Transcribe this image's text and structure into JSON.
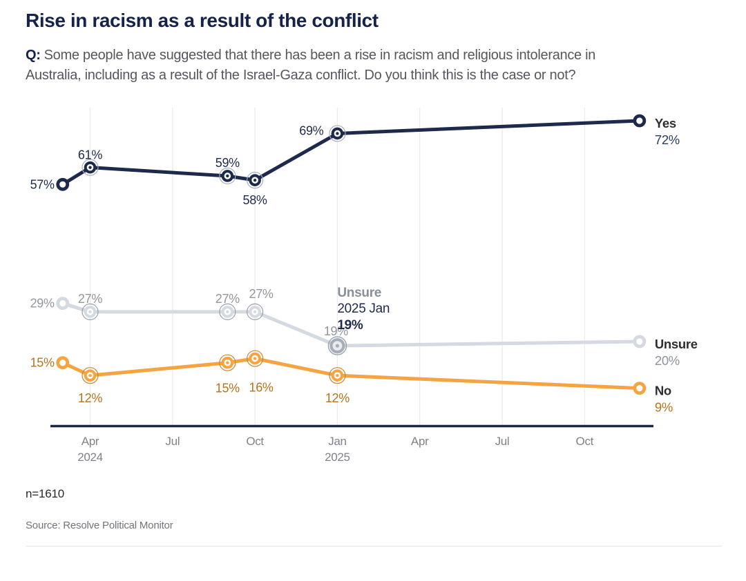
{
  "header": {
    "title": "Rise in racism as a result of the conflict",
    "question_prefix": "Q:",
    "question_lines": [
      "Some people have suggested that there has been a rise in racism and religious intolerance in",
      "Australia, including as a result of the Israel-Gaza conflict. Do you think this is the case or not?"
    ]
  },
  "footer": {
    "sample_size": "n=1610",
    "source": "Source: Resolve Political Monitor"
  },
  "colors": {
    "title_navy": "#15234a",
    "axis_line": "#1b2745",
    "gridline": "#ececee",
    "tick_label": "#7e8188",
    "series_name_label": "#2d2e32"
  },
  "chart_data": {
    "type": "line",
    "title": "Rise in racism as a result of the conflict",
    "grid": "vertical-only",
    "legend_position": "line-end-labels",
    "ylim": [
      0,
      75
    ],
    "x_unit": "months since 2024-01",
    "points_months": [
      2,
      3,
      8,
      9,
      12,
      23
    ],
    "point_dates": [
      "2024 Mar",
      "2024 Apr",
      "2024 Sep",
      "2024 Oct",
      "2025 Jan",
      "2025 Dec"
    ],
    "x_ticks": [
      {
        "label": "Apr",
        "year": "2024",
        "month": 3
      },
      {
        "label": "Jul",
        "month": 6
      },
      {
        "label": "Oct",
        "month": 9
      },
      {
        "label": "Jan",
        "year": "2025",
        "month": 12
      },
      {
        "label": "Apr",
        "month": 15
      },
      {
        "label": "Jul",
        "month": 18
      },
      {
        "label": "Oct",
        "month": 21
      }
    ],
    "series": [
      {
        "name": "Yes",
        "values": [
          57,
          61,
          59,
          58,
          69,
          72
        ],
        "end_value_label": "72%",
        "color": "#1e2a4c",
        "halo_color": "#a7aec0",
        "label_color": "#1e2a4c",
        "end_value_color": "#2a3c68"
      },
      {
        "name": "Unsure",
        "values": [
          29,
          27,
          27,
          27,
          19,
          20
        ],
        "end_value_label": "20%",
        "color": "#d4d9e2",
        "halo_color": "#9aa0ab",
        "label_color": "#93969c",
        "end_value_color": "#8f939b"
      },
      {
        "name": "No",
        "values": [
          15,
          12,
          15,
          16,
          12,
          9
        ],
        "end_value_label": "9%",
        "color": "#f6a441",
        "halo_color": "#c8872f",
        "label_color": "#b8731b",
        "end_value_color": "#b8731b"
      }
    ],
    "highlighted_point": {
      "series_index": 1,
      "point_index": 4
    },
    "annotation_tooltip": {
      "attached_series": "Unsure",
      "point_index": 4,
      "lines": [
        {
          "text": "Unsure",
          "color": "#8a8e96",
          "bold": true
        },
        {
          "text": "2025 Jan",
          "color": "#1e2a4c",
          "bold": false
        },
        {
          "text": "19%",
          "color": "#1e2a4c",
          "bold": true
        }
      ]
    }
  }
}
